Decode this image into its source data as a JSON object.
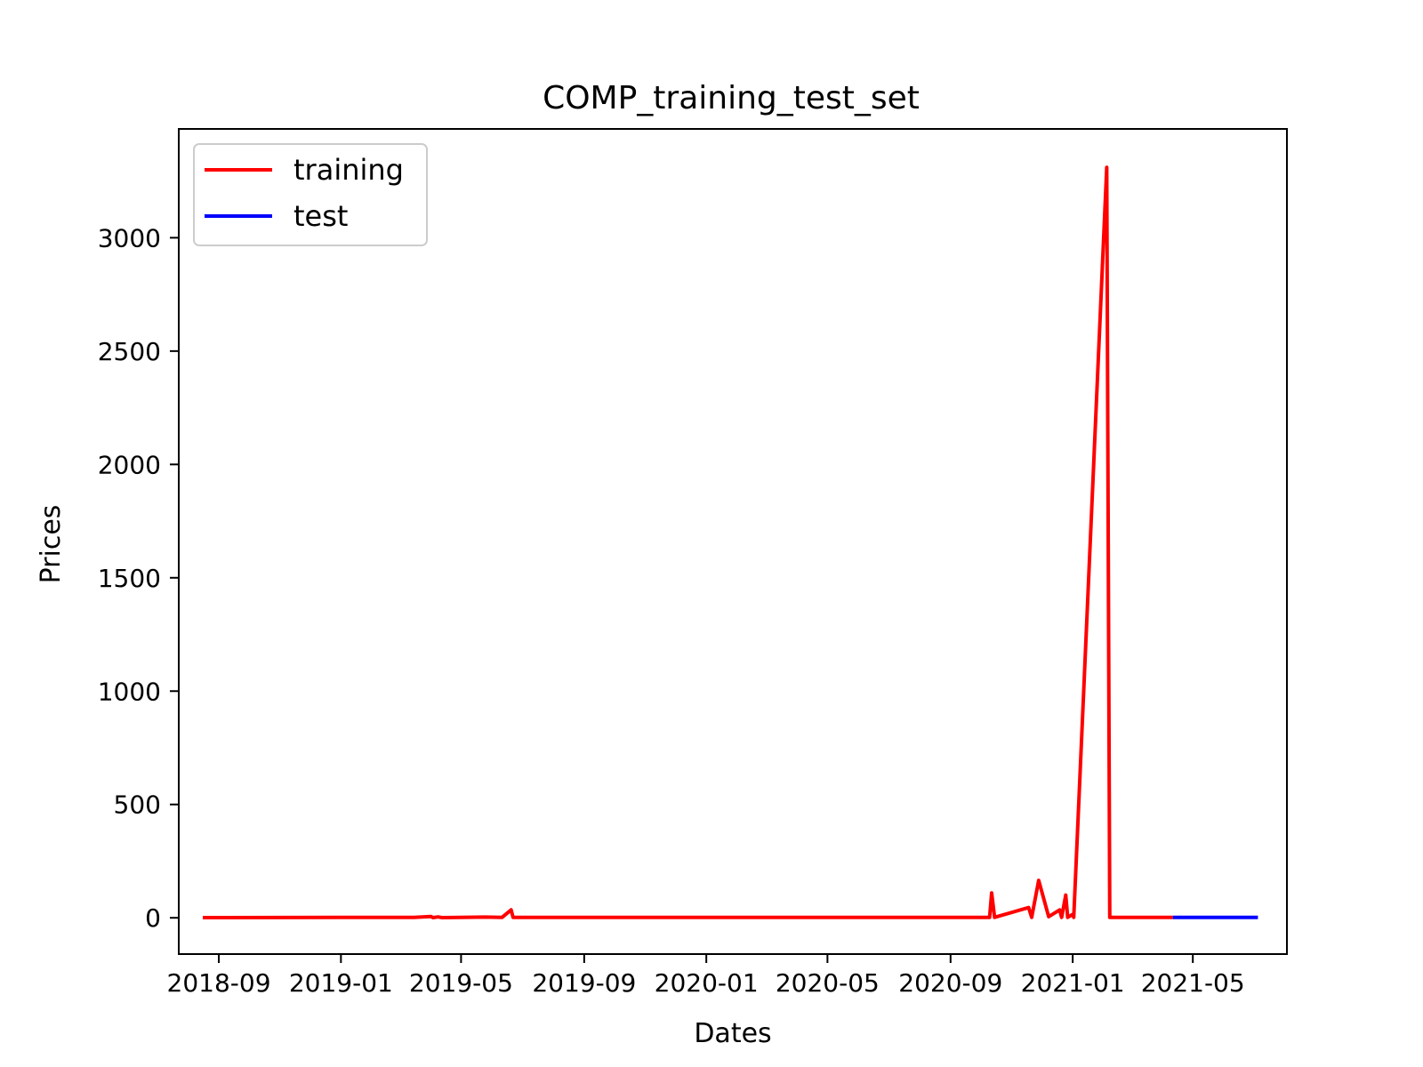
{
  "chart_data": {
    "type": "line",
    "title": "COMP_training_test_set",
    "xlabel": "Dates",
    "ylabel": "Prices",
    "xlim": [
      "2018-07-23",
      "2021-08-03"
    ],
    "ylim": [
      -160,
      3480
    ],
    "x_ticks": [
      "2018-09",
      "2019-01",
      "2019-05",
      "2019-09",
      "2020-01",
      "2020-05",
      "2020-09",
      "2021-01",
      "2021-05"
    ],
    "x_tick_dates": [
      "2018-09-01",
      "2019-01-01",
      "2019-05-01",
      "2019-09-01",
      "2020-01-01",
      "2020-05-01",
      "2020-09-01",
      "2021-01-01",
      "2021-05-01"
    ],
    "y_ticks": [
      0,
      500,
      1000,
      1500,
      2000,
      2500,
      3000
    ],
    "grid": false,
    "legend_position": "top-left",
    "series": [
      {
        "name": "training",
        "color": "#ff0000",
        "points": [
          [
            "2018-08-16",
            1
          ],
          [
            "2019-03-15",
            2
          ],
          [
            "2019-04-01",
            6
          ],
          [
            "2019-04-03",
            1
          ],
          [
            "2019-04-08",
            4
          ],
          [
            "2019-04-12",
            1
          ],
          [
            "2019-05-25",
            3
          ],
          [
            "2019-06-11",
            2
          ],
          [
            "2019-06-20",
            35
          ],
          [
            "2019-06-22",
            2
          ],
          [
            "2020-10-10",
            2
          ],
          [
            "2020-10-12",
            110
          ],
          [
            "2020-10-15",
            2
          ],
          [
            "2020-11-18",
            45
          ],
          [
            "2020-11-21",
            2
          ],
          [
            "2020-11-28",
            165
          ],
          [
            "2020-12-08",
            5
          ],
          [
            "2020-12-19",
            35
          ],
          [
            "2020-12-21",
            2
          ],
          [
            "2020-12-25",
            100
          ],
          [
            "2020-12-27",
            2
          ],
          [
            "2021-01-01",
            15
          ],
          [
            "2021-01-02",
            2
          ],
          [
            "2021-02-04",
            3310
          ],
          [
            "2021-02-07",
            2
          ],
          [
            "2021-04-11",
            2
          ]
        ]
      },
      {
        "name": "test",
        "color": "#0000ff",
        "points": [
          [
            "2021-04-11",
            2
          ],
          [
            "2021-07-05",
            2
          ]
        ]
      }
    ]
  }
}
